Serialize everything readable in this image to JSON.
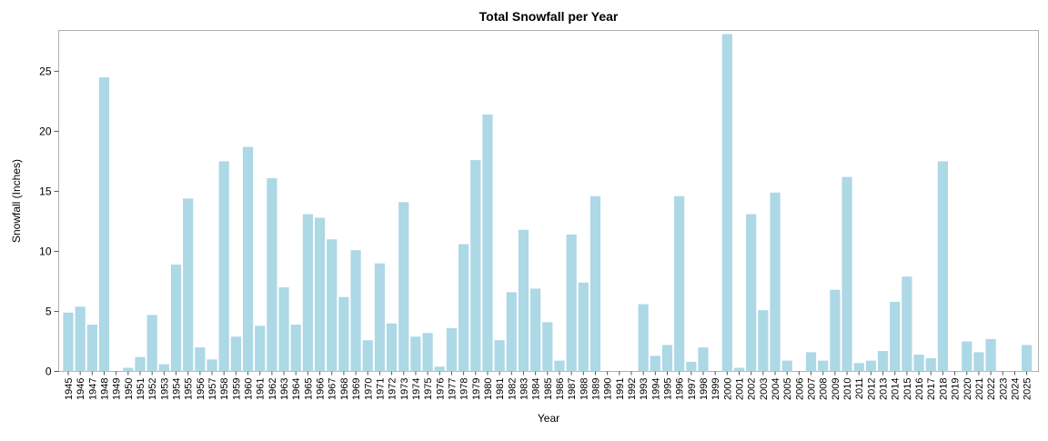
{
  "chart_data": {
    "type": "bar",
    "title": "Total Snowfall per Year",
    "xlabel": "Year",
    "ylabel": "Snowfall (Inches)",
    "ylim": [
      0,
      28.4
    ],
    "yticks": [
      0,
      5,
      10,
      15,
      20,
      25
    ],
    "grid": false,
    "bar_color": "#add8e6",
    "categories": [
      "1945",
      "1946",
      "1947",
      "1948",
      "1949",
      "1950",
      "1951",
      "1952",
      "1953",
      "1954",
      "1955",
      "1956",
      "1957",
      "1958",
      "1959",
      "1960",
      "1961",
      "1962",
      "1963",
      "1964",
      "1965",
      "1966",
      "1967",
      "1968",
      "1969",
      "1970",
      "1971",
      "1972",
      "1973",
      "1974",
      "1975",
      "1976",
      "1977",
      "1978",
      "1979",
      "1980",
      "1981",
      "1982",
      "1983",
      "1984",
      "1985",
      "1986",
      "1987",
      "1988",
      "1989",
      "1990",
      "1991",
      "1992",
      "1993",
      "1994",
      "1995",
      "1996",
      "1997",
      "1998",
      "1999",
      "2000",
      "2001",
      "2002",
      "2003",
      "2004",
      "2005",
      "2006",
      "2007",
      "2008",
      "2009",
      "2010",
      "2011",
      "2012",
      "2013",
      "2014",
      "2015",
      "2016",
      "2017",
      "2018",
      "2019",
      "2020",
      "2021",
      "2022",
      "2023",
      "2024",
      "2025"
    ],
    "values": [
      4.9,
      5.4,
      3.9,
      24.5,
      0,
      0.3,
      1.2,
      4.7,
      0.6,
      8.9,
      14.4,
      2.0,
      1.0,
      17.5,
      2.9,
      18.7,
      3.8,
      16.1,
      7.0,
      3.9,
      13.1,
      12.8,
      11.0,
      6.2,
      10.1,
      2.6,
      9.0,
      4.0,
      14.1,
      2.9,
      3.2,
      0.4,
      3.6,
      10.6,
      17.6,
      21.4,
      2.6,
      6.6,
      11.8,
      6.9,
      4.1,
      0.9,
      11.4,
      7.4,
      14.6,
      0,
      0,
      0,
      5.6,
      1.3,
      2.2,
      14.6,
      0.8,
      2.0,
      0,
      28.1,
      0.3,
      13.1,
      5.1,
      14.9,
      0.9,
      0,
      1.6,
      0.9,
      6.8,
      16.2,
      0.7,
      0.9,
      1.7,
      5.8,
      7.9,
      1.4,
      1.1,
      17.5,
      0,
      2.5,
      1.6,
      2.7,
      0,
      0,
      2.2
    ]
  }
}
